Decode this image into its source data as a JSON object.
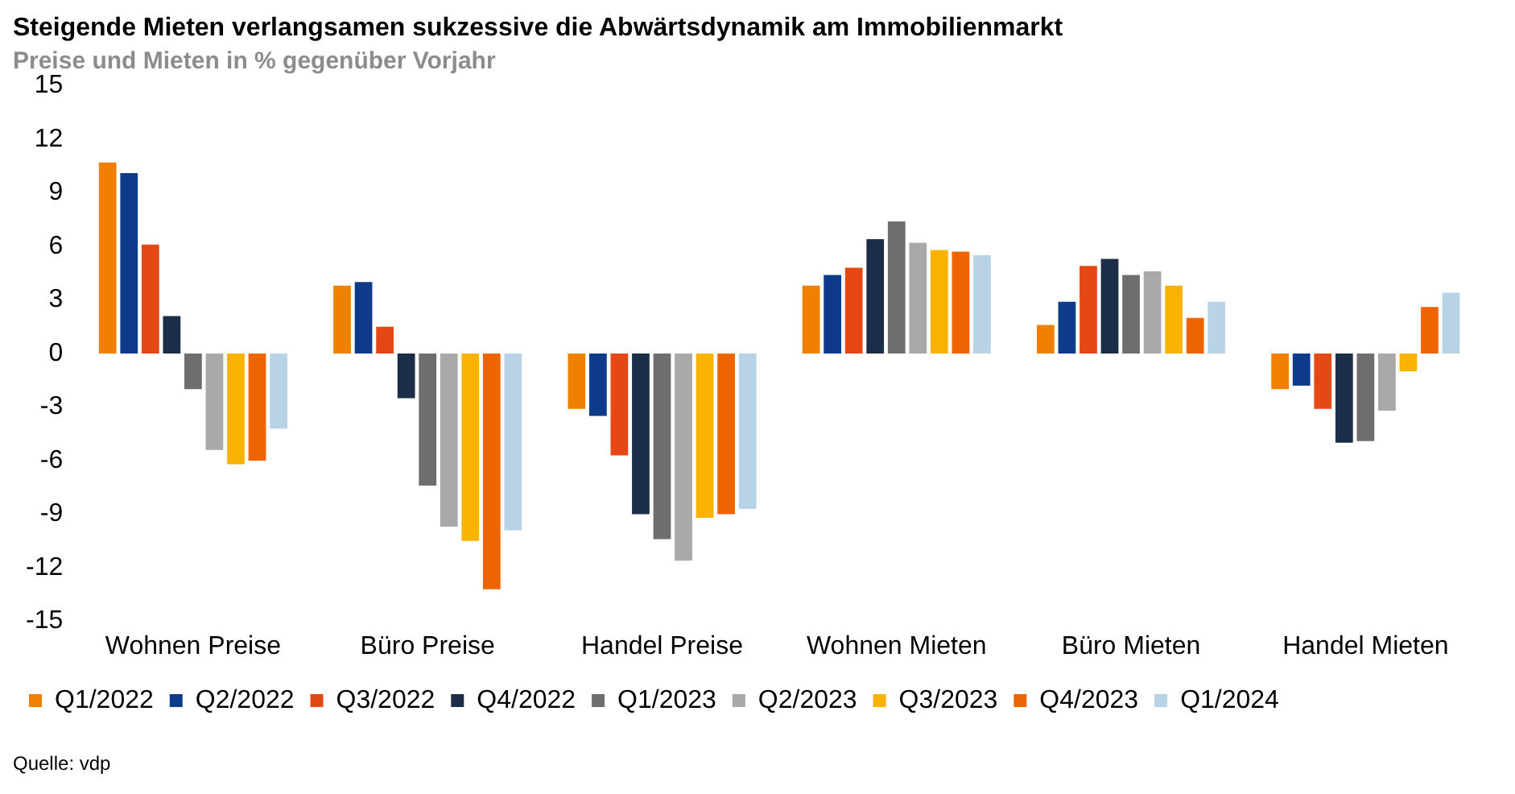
{
  "chart_data": {
    "type": "bar",
    "title": "Steigende Mieten verlangsamen sukzessive die Abwärtsdynamik am Immobilienmarkt",
    "subtitle": "Preise und Mieten in % gegenüber Vorjahr",
    "categories": [
      "Wohnen Preise",
      "Büro Preise",
      "Handel Preise",
      "Wohnen Mieten",
      "Büro Mieten",
      "Handel Mieten"
    ],
    "series": [
      {
        "name": "Q1/2022",
        "color": "#f08000",
        "values": [
          10.7,
          3.8,
          -3.1,
          3.8,
          1.6,
          -2.0
        ]
      },
      {
        "name": "Q2/2022",
        "color": "#0e3a8a",
        "values": [
          10.1,
          4.0,
          -3.5,
          4.4,
          2.9,
          -1.8
        ]
      },
      {
        "name": "Q3/2022",
        "color": "#e54814",
        "values": [
          6.1,
          1.5,
          -5.7,
          4.8,
          4.9,
          -3.1
        ]
      },
      {
        "name": "Q4/2022",
        "color": "#1b2d47",
        "values": [
          2.1,
          -2.5,
          -9.0,
          6.4,
          5.3,
          -5.0
        ]
      },
      {
        "name": "Q1/2023",
        "color": "#6e6e70",
        "values": [
          -2.0,
          -7.4,
          -10.4,
          7.4,
          4.4,
          -4.9
        ]
      },
      {
        "name": "Q2/2023",
        "color": "#a9a9a9",
        "values": [
          -5.4,
          -9.7,
          -11.6,
          6.2,
          4.6,
          -3.2
        ]
      },
      {
        "name": "Q3/2023",
        "color": "#f9b200",
        "values": [
          -6.2,
          -10.5,
          -9.2,
          5.8,
          3.8,
          -1.0
        ]
      },
      {
        "name": "Q4/2023",
        "color": "#ee6400",
        "values": [
          -6.0,
          -13.2,
          -9.0,
          5.7,
          2.0,
          2.6
        ]
      },
      {
        "name": "Q1/2024",
        "color": "#b8d3e6",
        "values": [
          -4.2,
          -9.9,
          -8.7,
          5.5,
          2.9,
          3.4
        ]
      }
    ],
    "ylim": [
      -15,
      15
    ],
    "yticks": [
      -15,
      -12,
      -9,
      -6,
      -3,
      0,
      3,
      6,
      9,
      12,
      15
    ],
    "grid": false,
    "legend": "bottom",
    "annotations": [
      "Quelle: vdp"
    ]
  }
}
